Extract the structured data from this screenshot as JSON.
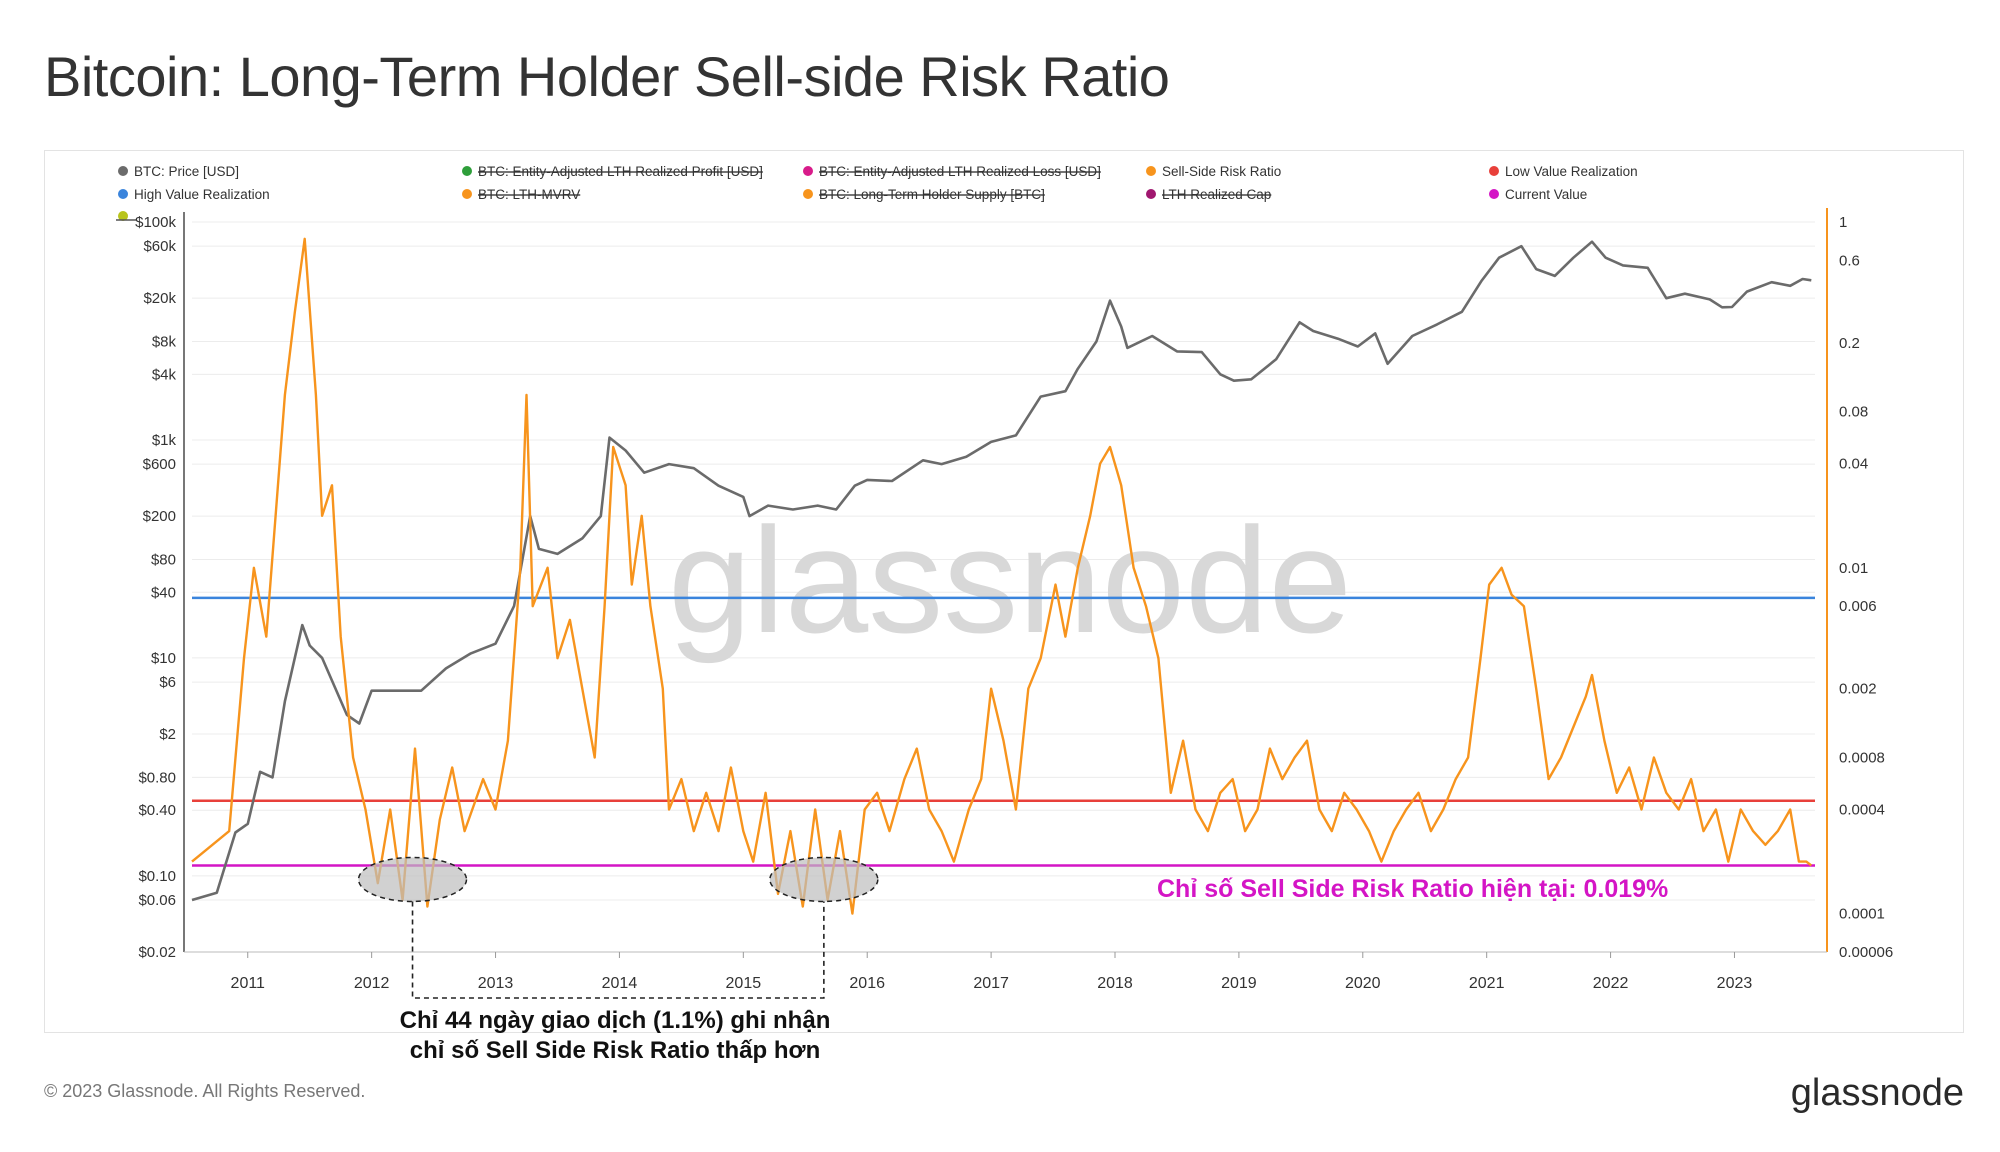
{
  "page": {
    "title": "Bitcoin: Long-Term Holder Sell-side Risk Ratio",
    "copyright": "© 2023 Glassnode. All Rights Reserved.",
    "brand": "glassnode",
    "watermark": "glassnode"
  },
  "legend": [
    {
      "label": "BTC: Price [USD]",
      "color": "#6b6b6b",
      "struck": false
    },
    {
      "label": "BTC: Entity-Adjusted LTH Realized Profit [USD]",
      "color": "#2e9e3a",
      "struck": true
    },
    {
      "label": "BTC: Entity-Adjusted LTH Realized Loss [USD]",
      "color": "#d81b8a",
      "struck": true
    },
    {
      "label": "Sell-Side Risk Ratio",
      "color": "#f7941d",
      "struck": false
    },
    {
      "label": "Low Value Realization",
      "color": "#e8403a",
      "struck": false
    },
    {
      "label": "High Value Realization",
      "color": "#3a84dc",
      "struck": false
    },
    {
      "label": "BTC: LTH-MVRV",
      "color": "#f7941d",
      "struck": true
    },
    {
      "label": "BTC: Long-Term Holder Supply [BTC]",
      "color": "#f7941d",
      "struck": true
    },
    {
      "label": "LTH Realized Cap",
      "color": "#a0176f",
      "struck": true
    },
    {
      "label": "Current Value",
      "color": "#d415c5",
      "struck": false
    }
  ],
  "annotations": {
    "note_line1": "Chỉ 44 ngày giao dịch (1.1%) ghi nhận",
    "note_line2": "chỉ số Sell Side Risk Ratio thấp hơn",
    "current_value": "Chỉ số Sell Side Risk Ratio hiện tại: 0.019%"
  },
  "chart_data": {
    "type": "line",
    "x_axis": {
      "ticks": [
        "2011",
        "2012",
        "2013",
        "2014",
        "2015",
        "2016",
        "2017",
        "2018",
        "2019",
        "2020",
        "2021",
        "2022",
        "2023"
      ],
      "range": [
        2010.55,
        2023.65
      ]
    },
    "y_left": {
      "scale": "log",
      "range": [
        0.02,
        100000
      ],
      "ticks": [
        "$100k",
        "$60k",
        "$20k",
        "$8k",
        "$4k",
        "$1k",
        "$600",
        "$200",
        "$80",
        "$40",
        "$10",
        "$6",
        "$2",
        "$0.80",
        "$0.40",
        "$0.10",
        "$0.06",
        "$0.02"
      ]
    },
    "y_right": {
      "scale": "log",
      "range": [
        6e-05,
        1
      ],
      "ticks": [
        "1",
        "0.6",
        "0.2",
        "0.08",
        "0.04",
        "0.01",
        "0.006",
        "0.002",
        "0.0008",
        "0.0004",
        "0.0001",
        "0.00006"
      ]
    },
    "series": [
      {
        "name": "BTC: Price [USD]",
        "axis": "left",
        "color": "#6b6b6b",
        "points": [
          [
            2010.55,
            0.06
          ],
          [
            2010.75,
            0.07
          ],
          [
            2010.9,
            0.25
          ],
          [
            2011.0,
            0.3
          ],
          [
            2011.1,
            0.9
          ],
          [
            2011.2,
            0.8
          ],
          [
            2011.3,
            4
          ],
          [
            2011.44,
            20
          ],
          [
            2011.5,
            13
          ],
          [
            2011.6,
            10
          ],
          [
            2011.8,
            3
          ],
          [
            2011.9,
            2.5
          ],
          [
            2012.0,
            5
          ],
          [
            2012.2,
            5
          ],
          [
            2012.4,
            5
          ],
          [
            2012.6,
            8
          ],
          [
            2012.8,
            11
          ],
          [
            2013.0,
            13.5
          ],
          [
            2013.15,
            30
          ],
          [
            2013.28,
            200
          ],
          [
            2013.35,
            100
          ],
          [
            2013.5,
            90
          ],
          [
            2013.7,
            125
          ],
          [
            2013.85,
            200
          ],
          [
            2013.92,
            1050
          ],
          [
            2014.05,
            800
          ],
          [
            2014.2,
            500
          ],
          [
            2014.4,
            600
          ],
          [
            2014.6,
            550
          ],
          [
            2014.8,
            380
          ],
          [
            2015.0,
            300
          ],
          [
            2015.05,
            200
          ],
          [
            2015.2,
            250
          ],
          [
            2015.4,
            230
          ],
          [
            2015.6,
            250
          ],
          [
            2015.75,
            230
          ],
          [
            2015.9,
            380
          ],
          [
            2016.0,
            430
          ],
          [
            2016.2,
            420
          ],
          [
            2016.45,
            650
          ],
          [
            2016.6,
            600
          ],
          [
            2016.8,
            700
          ],
          [
            2017.0,
            960
          ],
          [
            2017.2,
            1100
          ],
          [
            2017.4,
            2500
          ],
          [
            2017.6,
            2800
          ],
          [
            2017.7,
            4500
          ],
          [
            2017.85,
            8000
          ],
          [
            2017.96,
            19000
          ],
          [
            2018.05,
            11000
          ],
          [
            2018.1,
            7000
          ],
          [
            2018.3,
            9000
          ],
          [
            2018.5,
            6500
          ],
          [
            2018.7,
            6400
          ],
          [
            2018.85,
            4000
          ],
          [
            2018.96,
            3500
          ],
          [
            2019.1,
            3600
          ],
          [
            2019.3,
            5500
          ],
          [
            2019.49,
            12000
          ],
          [
            2019.6,
            10000
          ],
          [
            2019.8,
            8500
          ],
          [
            2019.96,
            7200
          ],
          [
            2020.1,
            9500
          ],
          [
            2020.2,
            5000
          ],
          [
            2020.4,
            9000
          ],
          [
            2020.6,
            11500
          ],
          [
            2020.8,
            15000
          ],
          [
            2020.96,
            29000
          ],
          [
            2021.1,
            47000
          ],
          [
            2021.28,
            60000
          ],
          [
            2021.4,
            37000
          ],
          [
            2021.55,
            32000
          ],
          [
            2021.7,
            47000
          ],
          [
            2021.85,
            66000
          ],
          [
            2021.96,
            47000
          ],
          [
            2022.1,
            40000
          ],
          [
            2022.3,
            38000
          ],
          [
            2022.45,
            20000
          ],
          [
            2022.6,
            22000
          ],
          [
            2022.8,
            19500
          ],
          [
            2022.9,
            16500
          ],
          [
            2022.98,
            16600
          ],
          [
            2023.1,
            23000
          ],
          [
            2023.3,
            28000
          ],
          [
            2023.45,
            26000
          ],
          [
            2023.55,
            30000
          ],
          [
            2023.62,
            29200
          ]
        ]
      },
      {
        "name": "Sell-Side Risk Ratio",
        "axis": "right",
        "color": "#f7941d",
        "points": [
          [
            2010.55,
            0.0002
          ],
          [
            2010.85,
            0.0003
          ],
          [
            2010.97,
            0.003
          ],
          [
            2011.05,
            0.01
          ],
          [
            2011.15,
            0.004
          ],
          [
            2011.3,
            0.1
          ],
          [
            2011.38,
            0.3
          ],
          [
            2011.46,
            0.8
          ],
          [
            2011.55,
            0.1
          ],
          [
            2011.6,
            0.02
          ],
          [
            2011.68,
            0.03
          ],
          [
            2011.75,
            0.004
          ],
          [
            2011.85,
            0.0008
          ],
          [
            2011.95,
            0.0004
          ],
          [
            2012.05,
            0.00015
          ],
          [
            2012.15,
            0.0004
          ],
          [
            2012.25,
            0.00012
          ],
          [
            2012.35,
            0.0009
          ],
          [
            2012.45,
            0.00011
          ],
          [
            2012.55,
            0.00035
          ],
          [
            2012.65,
            0.0007
          ],
          [
            2012.75,
            0.0003
          ],
          [
            2012.9,
            0.0006
          ],
          [
            2013.0,
            0.0004
          ],
          [
            2013.1,
            0.001
          ],
          [
            2013.2,
            0.01
          ],
          [
            2013.25,
            0.1
          ],
          [
            2013.3,
            0.006
          ],
          [
            2013.42,
            0.01
          ],
          [
            2013.5,
            0.003
          ],
          [
            2013.6,
            0.005
          ],
          [
            2013.7,
            0.002
          ],
          [
            2013.8,
            0.0008
          ],
          [
            2013.88,
            0.006
          ],
          [
            2013.95,
            0.05
          ],
          [
            2014.05,
            0.03
          ],
          [
            2014.1,
            0.008
          ],
          [
            2014.18,
            0.02
          ],
          [
            2014.25,
            0.006
          ],
          [
            2014.35,
            0.002
          ],
          [
            2014.4,
            0.0004
          ],
          [
            2014.5,
            0.0006
          ],
          [
            2014.6,
            0.0003
          ],
          [
            2014.7,
            0.0005
          ],
          [
            2014.8,
            0.0003
          ],
          [
            2014.9,
            0.0007
          ],
          [
            2015.0,
            0.0003
          ],
          [
            2015.08,
            0.0002
          ],
          [
            2015.18,
            0.0005
          ],
          [
            2015.28,
            0.00013
          ],
          [
            2015.38,
            0.0003
          ],
          [
            2015.48,
            0.00011
          ],
          [
            2015.58,
            0.0004
          ],
          [
            2015.68,
            0.00012
          ],
          [
            2015.78,
            0.0003
          ],
          [
            2015.88,
            0.0001
          ],
          [
            2015.98,
            0.0004
          ],
          [
            2016.08,
            0.0005
          ],
          [
            2016.18,
            0.0003
          ],
          [
            2016.3,
            0.0006
          ],
          [
            2016.4,
            0.0009
          ],
          [
            2016.5,
            0.0004
          ],
          [
            2016.6,
            0.0003
          ],
          [
            2016.7,
            0.0002
          ],
          [
            2016.82,
            0.0004
          ],
          [
            2016.92,
            0.0006
          ],
          [
            2017.0,
            0.002
          ],
          [
            2017.1,
            0.001
          ],
          [
            2017.2,
            0.0004
          ],
          [
            2017.3,
            0.002
          ],
          [
            2017.4,
            0.003
          ],
          [
            2017.52,
            0.008
          ],
          [
            2017.6,
            0.004
          ],
          [
            2017.7,
            0.01
          ],
          [
            2017.8,
            0.02
          ],
          [
            2017.88,
            0.04
          ],
          [
            2017.96,
            0.05
          ],
          [
            2018.05,
            0.03
          ],
          [
            2018.15,
            0.01
          ],
          [
            2018.25,
            0.006
          ],
          [
            2018.35,
            0.003
          ],
          [
            2018.45,
            0.0005
          ],
          [
            2018.55,
            0.001
          ],
          [
            2018.65,
            0.0004
          ],
          [
            2018.75,
            0.0003
          ],
          [
            2018.85,
            0.0005
          ],
          [
            2018.95,
            0.0006
          ],
          [
            2019.05,
            0.0003
          ],
          [
            2019.15,
            0.0004
          ],
          [
            2019.25,
            0.0009
          ],
          [
            2019.35,
            0.0006
          ],
          [
            2019.45,
            0.0008
          ],
          [
            2019.55,
            0.001
          ],
          [
            2019.65,
            0.0004
          ],
          [
            2019.75,
            0.0003
          ],
          [
            2019.85,
            0.0005
          ],
          [
            2019.95,
            0.0004
          ],
          [
            2020.05,
            0.0003
          ],
          [
            2020.15,
            0.0002
          ],
          [
            2020.25,
            0.0003
          ],
          [
            2020.35,
            0.0004
          ],
          [
            2020.45,
            0.0005
          ],
          [
            2020.55,
            0.0003
          ],
          [
            2020.65,
            0.0004
          ],
          [
            2020.75,
            0.0006
          ],
          [
            2020.85,
            0.0008
          ],
          [
            2020.95,
            0.003
          ],
          [
            2021.02,
            0.008
          ],
          [
            2021.12,
            0.01
          ],
          [
            2021.2,
            0.007
          ],
          [
            2021.3,
            0.006
          ],
          [
            2021.4,
            0.002
          ],
          [
            2021.5,
            0.0006
          ],
          [
            2021.6,
            0.0008
          ],
          [
            2021.7,
            0.0012
          ],
          [
            2021.8,
            0.0018
          ],
          [
            2021.85,
            0.0024
          ],
          [
            2021.95,
            0.001
          ],
          [
            2022.05,
            0.0005
          ],
          [
            2022.15,
            0.0007
          ],
          [
            2022.25,
            0.0004
          ],
          [
            2022.35,
            0.0008
          ],
          [
            2022.45,
            0.0005
          ],
          [
            2022.55,
            0.0004
          ],
          [
            2022.65,
            0.0006
          ],
          [
            2022.75,
            0.0003
          ],
          [
            2022.85,
            0.0004
          ],
          [
            2022.95,
            0.0002
          ],
          [
            2023.05,
            0.0004
          ],
          [
            2023.15,
            0.0003
          ],
          [
            2023.25,
            0.00025
          ],
          [
            2023.35,
            0.0003
          ],
          [
            2023.45,
            0.0004
          ],
          [
            2023.52,
            0.0002
          ],
          [
            2023.58,
            0.0002
          ],
          [
            2023.62,
            0.00019
          ]
        ]
      }
    ],
    "reference_lines": [
      {
        "name": "High Value Realization",
        "axis": "right",
        "value": 0.0067,
        "color": "#3a84dc"
      },
      {
        "name": "Low Value Realization",
        "axis": "right",
        "value": 0.00045,
        "color": "#e8403a"
      },
      {
        "name": "Current Value",
        "axis": "right",
        "value": 0.00019,
        "color": "#d415c5"
      }
    ],
    "highlights": [
      {
        "x_center": 2012.33,
        "value": 0.00019
      },
      {
        "x_center": 2015.65,
        "value": 0.00019
      }
    ]
  }
}
